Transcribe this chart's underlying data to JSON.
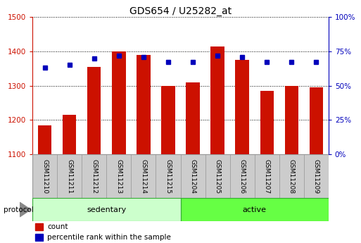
{
  "title": "GDS654 / U25282_at",
  "samples": [
    "GSM11210",
    "GSM11211",
    "GSM11212",
    "GSM11213",
    "GSM11214",
    "GSM11215",
    "GSM11204",
    "GSM11205",
    "GSM11206",
    "GSM11207",
    "GSM11208",
    "GSM11209"
  ],
  "counts": [
    1185,
    1215,
    1355,
    1400,
    1390,
    1300,
    1310,
    1415,
    1375,
    1285,
    1300,
    1295
  ],
  "percentile_ranks": [
    63,
    65,
    70,
    72,
    71,
    67,
    67,
    72,
    71,
    67,
    67,
    67
  ],
  "ylim_left": [
    1100,
    1500
  ],
  "ylim_right": [
    0,
    100
  ],
  "yticks_left": [
    1100,
    1200,
    1300,
    1400,
    1500
  ],
  "yticks_right": [
    0,
    25,
    50,
    75,
    100
  ],
  "ytick_labels_right": [
    "0%",
    "25%",
    "50%",
    "75%",
    "100%"
  ],
  "bar_color": "#cc1100",
  "dot_color": "#0000bb",
  "bar_bottom": 1100,
  "group1_label": "sedentary",
  "group2_label": "active",
  "group1_indices": [
    0,
    1,
    2,
    3,
    4,
    5
  ],
  "group2_indices": [
    6,
    7,
    8,
    9,
    10,
    11
  ],
  "group1_color": "#ccffcc",
  "group2_color": "#66ff44",
  "protocol_label": "protocol",
  "legend_count_label": "count",
  "legend_pct_label": "percentile rank within the sample",
  "title_fontsize": 10,
  "axis_left_color": "#cc1100",
  "axis_right_color": "#0000bb",
  "background_color": "#ffffff",
  "plot_bg_color": "#ffffff",
  "cell_color": "#cccccc",
  "cell_edge_color": "#999999",
  "arrow_color": "#888888",
  "border_color": "#000000"
}
